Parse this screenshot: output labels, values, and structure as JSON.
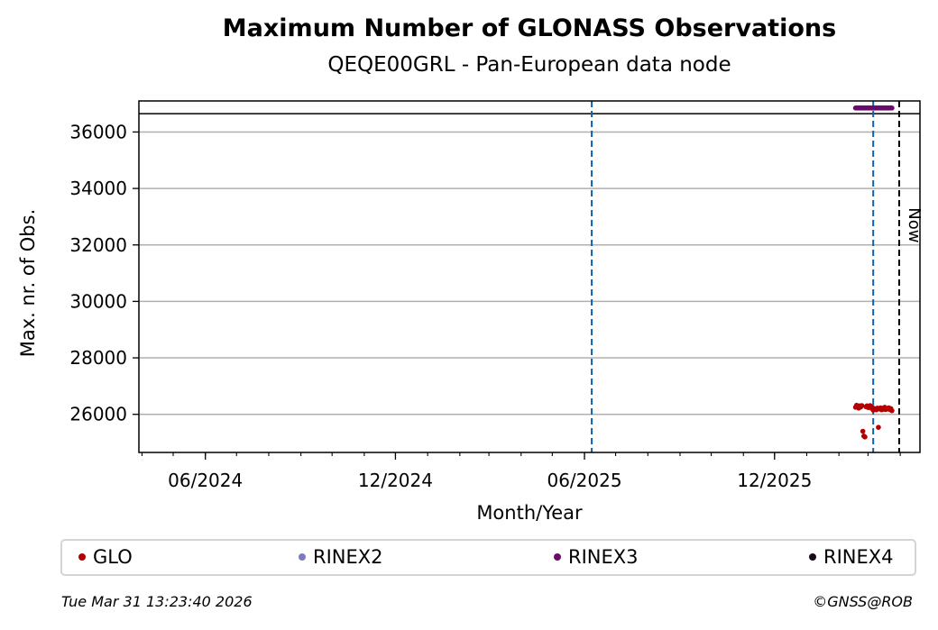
{
  "chart_data": {
    "type": "scatter",
    "title": "Maximum Number of GLONASS Observations",
    "subtitle": "QEQE00GRL - Pan-European data node",
    "xlabel": "Month/Year",
    "ylabel": "Max. nr. of Obs.",
    "xlim": [
      "2024-03-29",
      "2026-04-20"
    ],
    "ylim": [
      24650,
      37100
    ],
    "yticks": [
      26000,
      28000,
      30000,
      32000,
      34000,
      36000
    ],
    "xticks": [
      {
        "date": "2024-06-01",
        "label": "06/2024"
      },
      {
        "date": "2024-12-01",
        "label": "12/2024"
      },
      {
        "date": "2025-06-01",
        "label": "06/2025"
      },
      {
        "date": "2025-12-01",
        "label": "12/2025"
      }
    ],
    "grid": "horizontal",
    "limit_line": 36650,
    "vlines": [
      {
        "date": "2025-06-08",
        "style": "blue-dashed"
      },
      {
        "date": "2026-03-06",
        "style": "blue-dashed"
      },
      {
        "date": "2026-03-31",
        "style": "black-dashed",
        "label": "Now"
      }
    ],
    "series": [
      {
        "name": "GLO",
        "color": "#b30000",
        "points": [
          [
            "2026-02-17",
            26250
          ],
          [
            "2026-02-18",
            26320
          ],
          [
            "2026-02-19",
            26280
          ],
          [
            "2026-02-20",
            26220
          ],
          [
            "2026-02-21",
            26300
          ],
          [
            "2026-02-22",
            26260
          ],
          [
            "2026-02-23",
            26310
          ],
          [
            "2026-02-24",
            25400
          ],
          [
            "2026-02-25",
            25230
          ],
          [
            "2026-02-26",
            25200
          ],
          [
            "2026-02-27",
            26270
          ],
          [
            "2026-02-28",
            26300
          ],
          [
            "2026-03-01",
            26240
          ],
          [
            "2026-03-02",
            26280
          ],
          [
            "2026-03-03",
            26310
          ],
          [
            "2026-03-04",
            26220
          ],
          [
            "2026-03-05",
            26260
          ],
          [
            "2026-03-06",
            26150
          ],
          [
            "2026-03-07",
            26200
          ],
          [
            "2026-03-08",
            26180
          ],
          [
            "2026-03-09",
            26160
          ],
          [
            "2026-03-10",
            26220
          ],
          [
            "2026-03-11",
            25540
          ],
          [
            "2026-03-12",
            26190
          ],
          [
            "2026-03-13",
            26230
          ],
          [
            "2026-03-14",
            26160
          ],
          [
            "2026-03-15",
            26200
          ],
          [
            "2026-03-16",
            26180
          ],
          [
            "2026-03-17",
            26250
          ],
          [
            "2026-03-18",
            26170
          ],
          [
            "2026-03-19",
            26210
          ],
          [
            "2026-03-20",
            26190
          ],
          [
            "2026-03-21",
            26230
          ],
          [
            "2026-03-22",
            26170
          ],
          [
            "2026-03-23",
            26200
          ],
          [
            "2026-03-24",
            26130
          ]
        ]
      },
      {
        "name": "RINEX2",
        "color": "#7b7bbd",
        "points": []
      },
      {
        "name": "RINEX3",
        "color": "#6a0a6a",
        "points": [
          [
            "2026-02-17",
            36850
          ],
          [
            "2026-02-18",
            36850
          ],
          [
            "2026-02-19",
            36850
          ],
          [
            "2026-02-20",
            36850
          ],
          [
            "2026-02-21",
            36850
          ],
          [
            "2026-02-22",
            36850
          ],
          [
            "2026-02-23",
            36850
          ],
          [
            "2026-02-24",
            36850
          ],
          [
            "2026-02-25",
            36850
          ],
          [
            "2026-02-26",
            36850
          ],
          [
            "2026-02-27",
            36850
          ],
          [
            "2026-02-28",
            36850
          ],
          [
            "2026-03-01",
            36850
          ],
          [
            "2026-03-02",
            36850
          ],
          [
            "2026-03-03",
            36850
          ],
          [
            "2026-03-04",
            36850
          ],
          [
            "2026-03-05",
            36850
          ],
          [
            "2026-03-06",
            36850
          ],
          [
            "2026-03-07",
            36850
          ],
          [
            "2026-03-08",
            36850
          ],
          [
            "2026-03-09",
            36850
          ],
          [
            "2026-03-10",
            36850
          ],
          [
            "2026-03-11",
            36850
          ],
          [
            "2026-03-12",
            36850
          ],
          [
            "2026-03-13",
            36850
          ],
          [
            "2026-03-14",
            36850
          ],
          [
            "2026-03-15",
            36850
          ],
          [
            "2026-03-16",
            36850
          ],
          [
            "2026-03-17",
            36850
          ],
          [
            "2026-03-18",
            36850
          ],
          [
            "2026-03-19",
            36850
          ],
          [
            "2026-03-20",
            36850
          ],
          [
            "2026-03-21",
            36850
          ],
          [
            "2026-03-22",
            36850
          ],
          [
            "2026-03-23",
            36850
          ],
          [
            "2026-03-24",
            36850
          ]
        ]
      },
      {
        "name": "RINEX4",
        "color": "#1a0a1a",
        "points": []
      }
    ],
    "legend_position": "bottom"
  },
  "footer": {
    "timestamp": "Tue Mar 31 13:23:40 2026",
    "credit": "©GNSS@ROB"
  }
}
